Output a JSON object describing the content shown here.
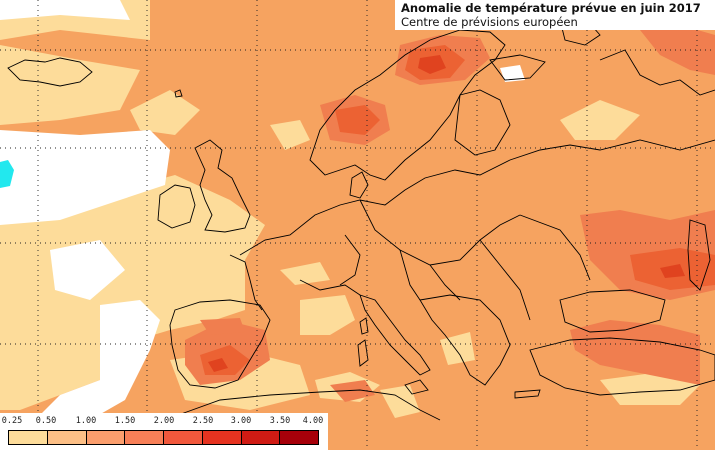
{
  "header": {
    "title": "Anomalie de température prévue en juin 2017",
    "subtitle": "Centre de prévisions européen"
  },
  "legend": {
    "ticks": [
      "0.25",
      "0.50",
      "1.00",
      "1.50",
      "2.00",
      "2.50",
      "3.00",
      "3.50",
      "4.00"
    ],
    "colors": [
      "#fddc9a",
      "#fcbf86",
      "#fb9e6d",
      "#f77f57",
      "#f1583c",
      "#e63320",
      "#cf1b14",
      "#a6000a"
    ]
  },
  "map": {
    "colors": {
      "background": "#f6a360",
      "anomaly_025_050": "#fddc9a",
      "anomaly_050_100": "#f6a360",
      "anomaly_100_150": "#f07e4f",
      "anomaly_150_200": "#ec6233",
      "anomaly_200_250": "#e0431f",
      "no_anomaly": "#ffffff",
      "negative": "#22e8ee",
      "coastline": "#000000",
      "gridline": "#222222"
    }
  }
}
